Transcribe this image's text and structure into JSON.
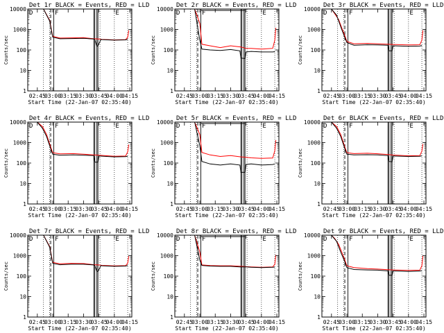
{
  "page": {
    "width": 640,
    "height": 480
  },
  "chart_data": [
    {
      "type": "line",
      "title": "Det 1r BLACK = Events, RED = LLD",
      "xlabel": "Start Time (22-Jan-07 02:35:40)",
      "ylabel": "Counts/sec",
      "x_tick_labels": [
        "02:45",
        "03:00",
        "03:15",
        "03:30",
        "03:45",
        "04:00",
        "04:15"
      ],
      "y_tick_labels": [
        "1",
        "10",
        "100",
        "1000",
        "10000"
      ],
      "y_scale": "log",
      "ylim": [
        1,
        10000
      ],
      "corner_labels": [
        "D",
        "F",
        "E"
      ],
      "attenuator_top": false,
      "series": [
        {
          "color": "#000000",
          "x": [
            "02:51",
            "02:57",
            "03:00",
            "03:07",
            "03:18",
            "03:30",
            "03:40",
            "03:41",
            "03:43",
            "03:44",
            "03:47",
            "03:48",
            "04:00",
            "04:11",
            "04:13"
          ],
          "y": [
            10000,
            2600,
            420,
            350,
            360,
            370,
            340,
            320,
            150,
            160,
            330,
            320,
            300,
            310,
            330
          ]
        },
        {
          "color": "#ff0000",
          "x": [
            "02:51",
            "02:57",
            "03:00",
            "03:07",
            "03:18",
            "03:30",
            "03:40",
            "03:44",
            "03:48",
            "04:00",
            "04:11",
            "04:13",
            "04:14"
          ],
          "y": [
            10000,
            2800,
            460,
            380,
            390,
            400,
            350,
            345,
            330,
            310,
            320,
            420,
            900
          ]
        }
      ]
    },
    {
      "type": "line",
      "title": "Det 2r BLACK = Events, RED = LLD",
      "xlabel": "Start Time (22-Jan-07 02:35:40)",
      "ylabel": "Counts/sec",
      "x_tick_labels": [
        "02:45",
        "03:00",
        "03:15",
        "03:30",
        "03:45",
        "04:00",
        "04:15"
      ],
      "y_tick_labels": [
        "1",
        "10",
        "100",
        "1000",
        "10000"
      ],
      "y_scale": "log",
      "ylim": [
        1,
        10000
      ],
      "corner_labels": [
        "D",
        "F",
        "E"
      ],
      "attenuator_top": true,
      "series": [
        {
          "color": "#000000",
          "x": [
            "02:55",
            "03:00",
            "03:02",
            "03:10",
            "03:20",
            "03:30",
            "03:39",
            "03:40",
            "03:44",
            "03:45",
            "03:50",
            "04:00",
            "04:11",
            "04:13"
          ],
          "y": [
            10000,
            300,
            110,
            100,
            95,
            105,
            90,
            40,
            38,
            80,
            85,
            80,
            80,
            82
          ]
        },
        {
          "color": "#ff0000",
          "x": [
            "02:55",
            "03:00",
            "03:02",
            "03:10",
            "03:20",
            "03:30",
            "03:40",
            "03:45",
            "03:50",
            "04:00",
            "04:11",
            "04:13",
            "04:14"
          ],
          "y": [
            10000,
            2000,
            190,
            160,
            130,
            160,
            140,
            120,
            120,
            110,
            120,
            300,
            1200
          ]
        }
      ]
    },
    {
      "type": "line",
      "title": "Det 3r BLACK = Events, RED = LLD",
      "xlabel": "Start Time (22-Jan-07 02:35:40)",
      "ylabel": "Counts/sec",
      "x_tick_labels": [
        "02:45",
        "03:00",
        "03:15",
        "03:30",
        "03:45",
        "04:00",
        "04:15"
      ],
      "y_tick_labels": [
        "1",
        "10",
        "100",
        "1000",
        "10000"
      ],
      "y_scale": "log",
      "ylim": [
        1,
        10000
      ],
      "corner_labels": [
        "D",
        "F",
        "E"
      ],
      "attenuator_top": false,
      "series": [
        {
          "color": "#000000",
          "x": [
            "02:45",
            "02:50",
            "02:55",
            "02:58",
            "03:00",
            "03:07",
            "03:20",
            "03:30",
            "03:40",
            "03:41",
            "03:44",
            "03:45",
            "04:00",
            "04:11",
            "04:13"
          ],
          "y": [
            10000,
            5000,
            1000,
            400,
            230,
            170,
            180,
            175,
            170,
            90,
            90,
            160,
            150,
            155,
            165
          ]
        },
        {
          "color": "#ff0000",
          "x": [
            "02:45",
            "02:48",
            "02:52",
            "02:55",
            "02:58",
            "03:00",
            "03:07",
            "03:20",
            "03:30",
            "03:40",
            "03:45",
            "04:00",
            "04:11",
            "04:13",
            "04:14"
          ],
          "y": [
            10000,
            6000,
            3000,
            1200,
            500,
            260,
            200,
            210,
            200,
            190,
            185,
            175,
            180,
            300,
            900
          ]
        }
      ]
    },
    {
      "type": "line",
      "title": "Det 4r BLACK = Events, RED = LLD",
      "xlabel": "Start Time (22-Jan-07 02:35:40)",
      "ylabel": "Counts/sec",
      "x_tick_labels": [
        "02:45",
        "03:00",
        "03:15",
        "03:30",
        "03:45",
        "04:00",
        "04:15"
      ],
      "y_tick_labels": [
        "1",
        "10",
        "100",
        "1000",
        "10000"
      ],
      "y_scale": "log",
      "ylim": [
        1,
        10000
      ],
      "corner_labels": [
        "D",
        "F",
        "E"
      ],
      "attenuator_top": false,
      "series": [
        {
          "color": "#000000",
          "x": [
            "02:45",
            "02:50",
            "02:54",
            "02:58",
            "03:00",
            "03:07",
            "03:20",
            "03:30",
            "03:40",
            "03:41",
            "03:44",
            "03:45",
            "04:00",
            "04:11",
            "04:13"
          ],
          "y": [
            10000,
            5000,
            2000,
            500,
            270,
            240,
            250,
            240,
            230,
            110,
            110,
            220,
            200,
            205,
            215
          ]
        },
        {
          "color": "#ff0000",
          "x": [
            "02:45",
            "02:50",
            "02:54",
            "02:58",
            "03:00",
            "03:07",
            "03:20",
            "03:30",
            "03:40",
            "03:45",
            "04:00",
            "04:11",
            "04:13",
            "04:14"
          ],
          "y": [
            10000,
            6000,
            2500,
            600,
            320,
            280,
            290,
            270,
            250,
            240,
            215,
            220,
            350,
            800
          ]
        }
      ]
    },
    {
      "type": "line",
      "title": "Det 5r BLACK = Events, RED = LLD",
      "xlabel": "Start Time (22-Jan-07 02:35:40)",
      "ylabel": "Counts/sec",
      "x_tick_labels": [
        "02:45",
        "03:00",
        "03:15",
        "03:30",
        "03:45",
        "04:00",
        "04:15"
      ],
      "y_tick_labels": [
        "1",
        "10",
        "100",
        "1000",
        "10000"
      ],
      "y_scale": "log",
      "ylim": [
        1,
        10000
      ],
      "corner_labels": [
        "D",
        "F",
        "E"
      ],
      "attenuator_top": true,
      "series": [
        {
          "color": "#000000",
          "x": [
            "02:55",
            "03:00",
            "03:02",
            "03:10",
            "03:20",
            "03:30",
            "03:39",
            "03:40",
            "03:44",
            "03:45",
            "03:50",
            "04:00",
            "04:11",
            "04:13"
          ],
          "y": [
            10000,
            700,
            120,
            90,
            80,
            90,
            80,
            35,
            35,
            85,
            90,
            80,
            85,
            90
          ]
        },
        {
          "color": "#ff0000",
          "x": [
            "02:55",
            "03:00",
            "03:02",
            "03:10",
            "03:20",
            "03:30",
            "03:40",
            "03:45",
            "03:50",
            "04:00",
            "04:11",
            "04:13",
            "04:14"
          ],
          "y": [
            10000,
            2500,
            330,
            250,
            210,
            230,
            200,
            190,
            180,
            170,
            175,
            400,
            1300
          ]
        }
      ]
    },
    {
      "type": "line",
      "title": "Det 6r BLACK = Events, RED = LLD",
      "xlabel": "Start Time (22-Jan-07 02:35:40)",
      "ylabel": "Counts/sec",
      "x_tick_labels": [
        "02:45",
        "03:00",
        "03:15",
        "03:30",
        "03:45",
        "04:00",
        "04:15"
      ],
      "y_tick_labels": [
        "1",
        "10",
        "100",
        "1000",
        "10000"
      ],
      "y_scale": "log",
      "ylim": [
        1,
        10000
      ],
      "corner_labels": [
        "D",
        "F",
        "E"
      ],
      "attenuator_top": false,
      "series": [
        {
          "color": "#000000",
          "x": [
            "02:45",
            "02:50",
            "02:54",
            "02:58",
            "03:00",
            "03:07",
            "03:20",
            "03:30",
            "03:40",
            "03:41",
            "03:44",
            "03:45",
            "04:00",
            "04:11",
            "04:13"
          ],
          "y": [
            10000,
            5000,
            2000,
            500,
            270,
            250,
            255,
            250,
            230,
            120,
            115,
            220,
            210,
            215,
            225
          ]
        },
        {
          "color": "#ff0000",
          "x": [
            "02:45",
            "02:50",
            "02:54",
            "02:58",
            "03:00",
            "03:07",
            "03:20",
            "03:30",
            "03:40",
            "03:45",
            "04:00",
            "04:11",
            "04:13",
            "04:14"
          ],
          "y": [
            10000,
            6000,
            2500,
            600,
            320,
            290,
            300,
            285,
            260,
            245,
            225,
            230,
            380,
            850
          ]
        }
      ]
    },
    {
      "type": "line",
      "title": "Det 7r BLACK = Events, RED = LLD",
      "xlabel": "Start Time (22-Jan-07 02:35:40)",
      "ylabel": "Counts/sec",
      "x_tick_labels": [
        "02:45",
        "03:00",
        "03:15",
        "03:30",
        "03:45",
        "04:00",
        "04:15"
      ],
      "y_tick_labels": [
        "1",
        "10",
        "100",
        "1000",
        "10000"
      ],
      "y_scale": "log",
      "ylim": [
        1,
        10000
      ],
      "corner_labels": [
        "D",
        "F",
        "E"
      ],
      "attenuator_top": false,
      "series": [
        {
          "color": "#000000",
          "x": [
            "02:51",
            "02:57",
            "03:00",
            "03:07",
            "03:18",
            "03:30",
            "03:40",
            "03:41",
            "03:43",
            "03:44",
            "03:47",
            "03:48",
            "04:00",
            "04:11",
            "04:13"
          ],
          "y": [
            10000,
            2600,
            420,
            360,
            380,
            380,
            350,
            320,
            170,
            170,
            330,
            320,
            300,
            310,
            330
          ]
        },
        {
          "color": "#ff0000",
          "x": [
            "02:51",
            "02:57",
            "03:00",
            "03:07",
            "03:18",
            "03:30",
            "03:40",
            "03:44",
            "03:48",
            "04:00",
            "04:11",
            "04:13",
            "04:14"
          ],
          "y": [
            10000,
            2800,
            470,
            400,
            420,
            410,
            360,
            350,
            335,
            315,
            325,
            430,
            950
          ]
        }
      ]
    },
    {
      "type": "line",
      "title": "Det 8r BLACK = Events, RED = LLD",
      "xlabel": "Start Time (22-Jan-07 02:35:40)",
      "ylabel": "Counts/sec",
      "x_tick_labels": [
        "02:45",
        "03:00",
        "03:15",
        "03:30",
        "03:45",
        "04:00",
        "04:15"
      ],
      "y_tick_labels": [
        "1",
        "10",
        "100",
        "1000",
        "10000"
      ],
      "y_scale": "log",
      "ylim": [
        1,
        10000
      ],
      "corner_labels": [
        "D",
        "F",
        "E"
      ],
      "attenuator_top": true,
      "series": [
        {
          "color": "#000000",
          "x": [
            "02:55",
            "03:00",
            "03:02",
            "03:10",
            "03:20",
            "03:30",
            "03:39",
            "03:40",
            "03:44",
            "03:45",
            "03:50",
            "04:00",
            "04:11",
            "04:13"
          ],
          "y": [
            10000,
            600,
            330,
            310,
            300,
            300,
            280,
            280,
            280,
            280,
            270,
            260,
            270,
            275
          ]
        },
        {
          "color": "#ff0000",
          "x": [
            "02:55",
            "03:00",
            "03:02",
            "03:10",
            "03:20",
            "03:30",
            "03:40",
            "03:45",
            "03:50",
            "04:00",
            "04:11",
            "04:13",
            "04:14"
          ],
          "y": [
            10000,
            1500,
            350,
            330,
            320,
            320,
            300,
            290,
            280,
            270,
            280,
            380,
            1100
          ]
        }
      ]
    },
    {
      "type": "line",
      "title": "Det 9r BLACK = Events, RED = LLD",
      "xlabel": "Start Time (22-Jan-07 02:35:40)",
      "ylabel": "Counts/sec",
      "x_tick_labels": [
        "02:45",
        "03:00",
        "03:15",
        "03:30",
        "03:45",
        "04:00",
        "04:15"
      ],
      "y_tick_labels": [
        "1",
        "10",
        "100",
        "1000",
        "10000"
      ],
      "y_scale": "log",
      "ylim": [
        1,
        10000
      ],
      "corner_labels": [
        "D",
        "F",
        "E"
      ],
      "attenuator_top": false,
      "series": [
        {
          "color": "#000000",
          "x": [
            "02:45",
            "02:50",
            "02:54",
            "02:58",
            "03:00",
            "03:07",
            "03:20",
            "03:30",
            "03:40",
            "03:41",
            "03:44",
            "03:45",
            "04:00",
            "04:11",
            "04:13"
          ],
          "y": [
            10000,
            5000,
            1500,
            500,
            260,
            210,
            200,
            195,
            180,
            110,
            110,
            180,
            170,
            175,
            185
          ]
        },
        {
          "color": "#ff0000",
          "x": [
            "02:45",
            "02:48",
            "02:52",
            "02:55",
            "02:58",
            "03:00",
            "03:07",
            "03:20",
            "03:30",
            "03:40",
            "03:45",
            "04:00",
            "04:11",
            "04:13",
            "04:14"
          ],
          "y": [
            10000,
            7000,
            3500,
            1500,
            600,
            320,
            260,
            230,
            220,
            205,
            200,
            190,
            195,
            320,
            1000
          ]
        }
      ]
    }
  ]
}
